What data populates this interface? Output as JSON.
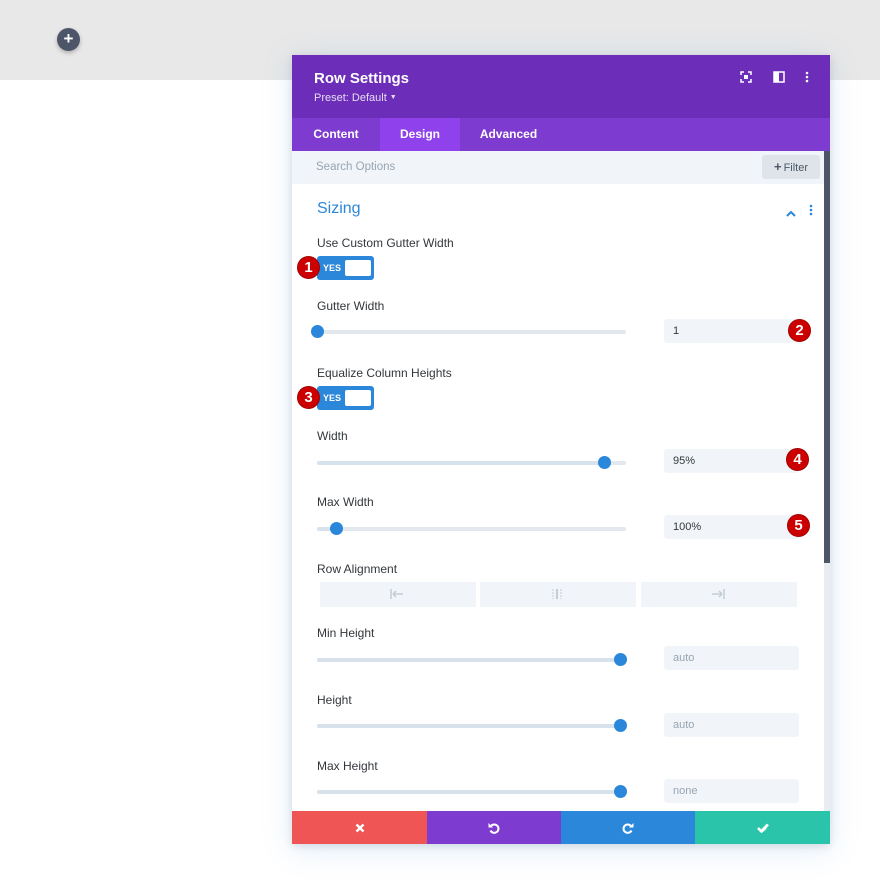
{
  "page": {
    "add_row_glyph": "+",
    "add_row_icon": "plus-icon",
    "background_color": "#ffffff",
    "band_color": "#e8e8e8"
  },
  "modal": {
    "title": "Row Settings",
    "preset_label": "Preset: Default",
    "header_icons": [
      "fullscreen-icon",
      "split-view-icon",
      "more-options-icon"
    ],
    "header_color": "#6c2eb9",
    "tabs": [
      {
        "label": "Content",
        "active": false
      },
      {
        "label": "Design",
        "active": true
      },
      {
        "label": "Advanced",
        "active": false
      }
    ],
    "search": {
      "placeholder": "Search Options",
      "value": ""
    },
    "filter_button": {
      "label": "Filter",
      "icon": "plus-icon"
    },
    "section": {
      "title": "Sizing",
      "expanded": true,
      "icons": [
        "chevron-up-icon",
        "more-options-icon"
      ]
    },
    "fields": {
      "custom_gutter": {
        "label": "Use Custom Gutter Width",
        "toggle_text": "YES",
        "on": true
      },
      "gutter_width": {
        "label": "Gutter Width",
        "value": "1",
        "slider_fraction": 0.0
      },
      "equalize": {
        "label": "Equalize Column Heights",
        "toggle_text": "YES",
        "on": true
      },
      "width": {
        "label": "Width",
        "value": "95%",
        "slider_fraction": 0.93
      },
      "max_width": {
        "label": "Max Width",
        "value": "100%",
        "slider_fraction": 0.06
      },
      "row_alignment": {
        "label": "Row Alignment",
        "options": [
          "align-left-icon",
          "align-center-icon",
          "align-right-icon"
        ]
      },
      "min_height": {
        "label": "Min Height",
        "value": "auto",
        "slider_fraction": 0.98
      },
      "height": {
        "label": "Height",
        "value": "auto",
        "slider_fraction": 0.98
      },
      "max_height": {
        "label": "Max Height",
        "value": "none",
        "slider_fraction": 0.98
      }
    },
    "annotations": [
      "1",
      "2",
      "3",
      "4",
      "5"
    ],
    "footer": [
      {
        "name": "cancel",
        "icon": "close-icon",
        "color": "#ef5555"
      },
      {
        "name": "undo",
        "icon": "undo-icon",
        "color": "#7e3bd0"
      },
      {
        "name": "redo",
        "icon": "redo-icon",
        "color": "#2b87da"
      },
      {
        "name": "save",
        "icon": "check-icon",
        "color": "#29c4a9"
      }
    ],
    "accent_color": "#2b87da",
    "annotation_color": "#cc0000"
  }
}
